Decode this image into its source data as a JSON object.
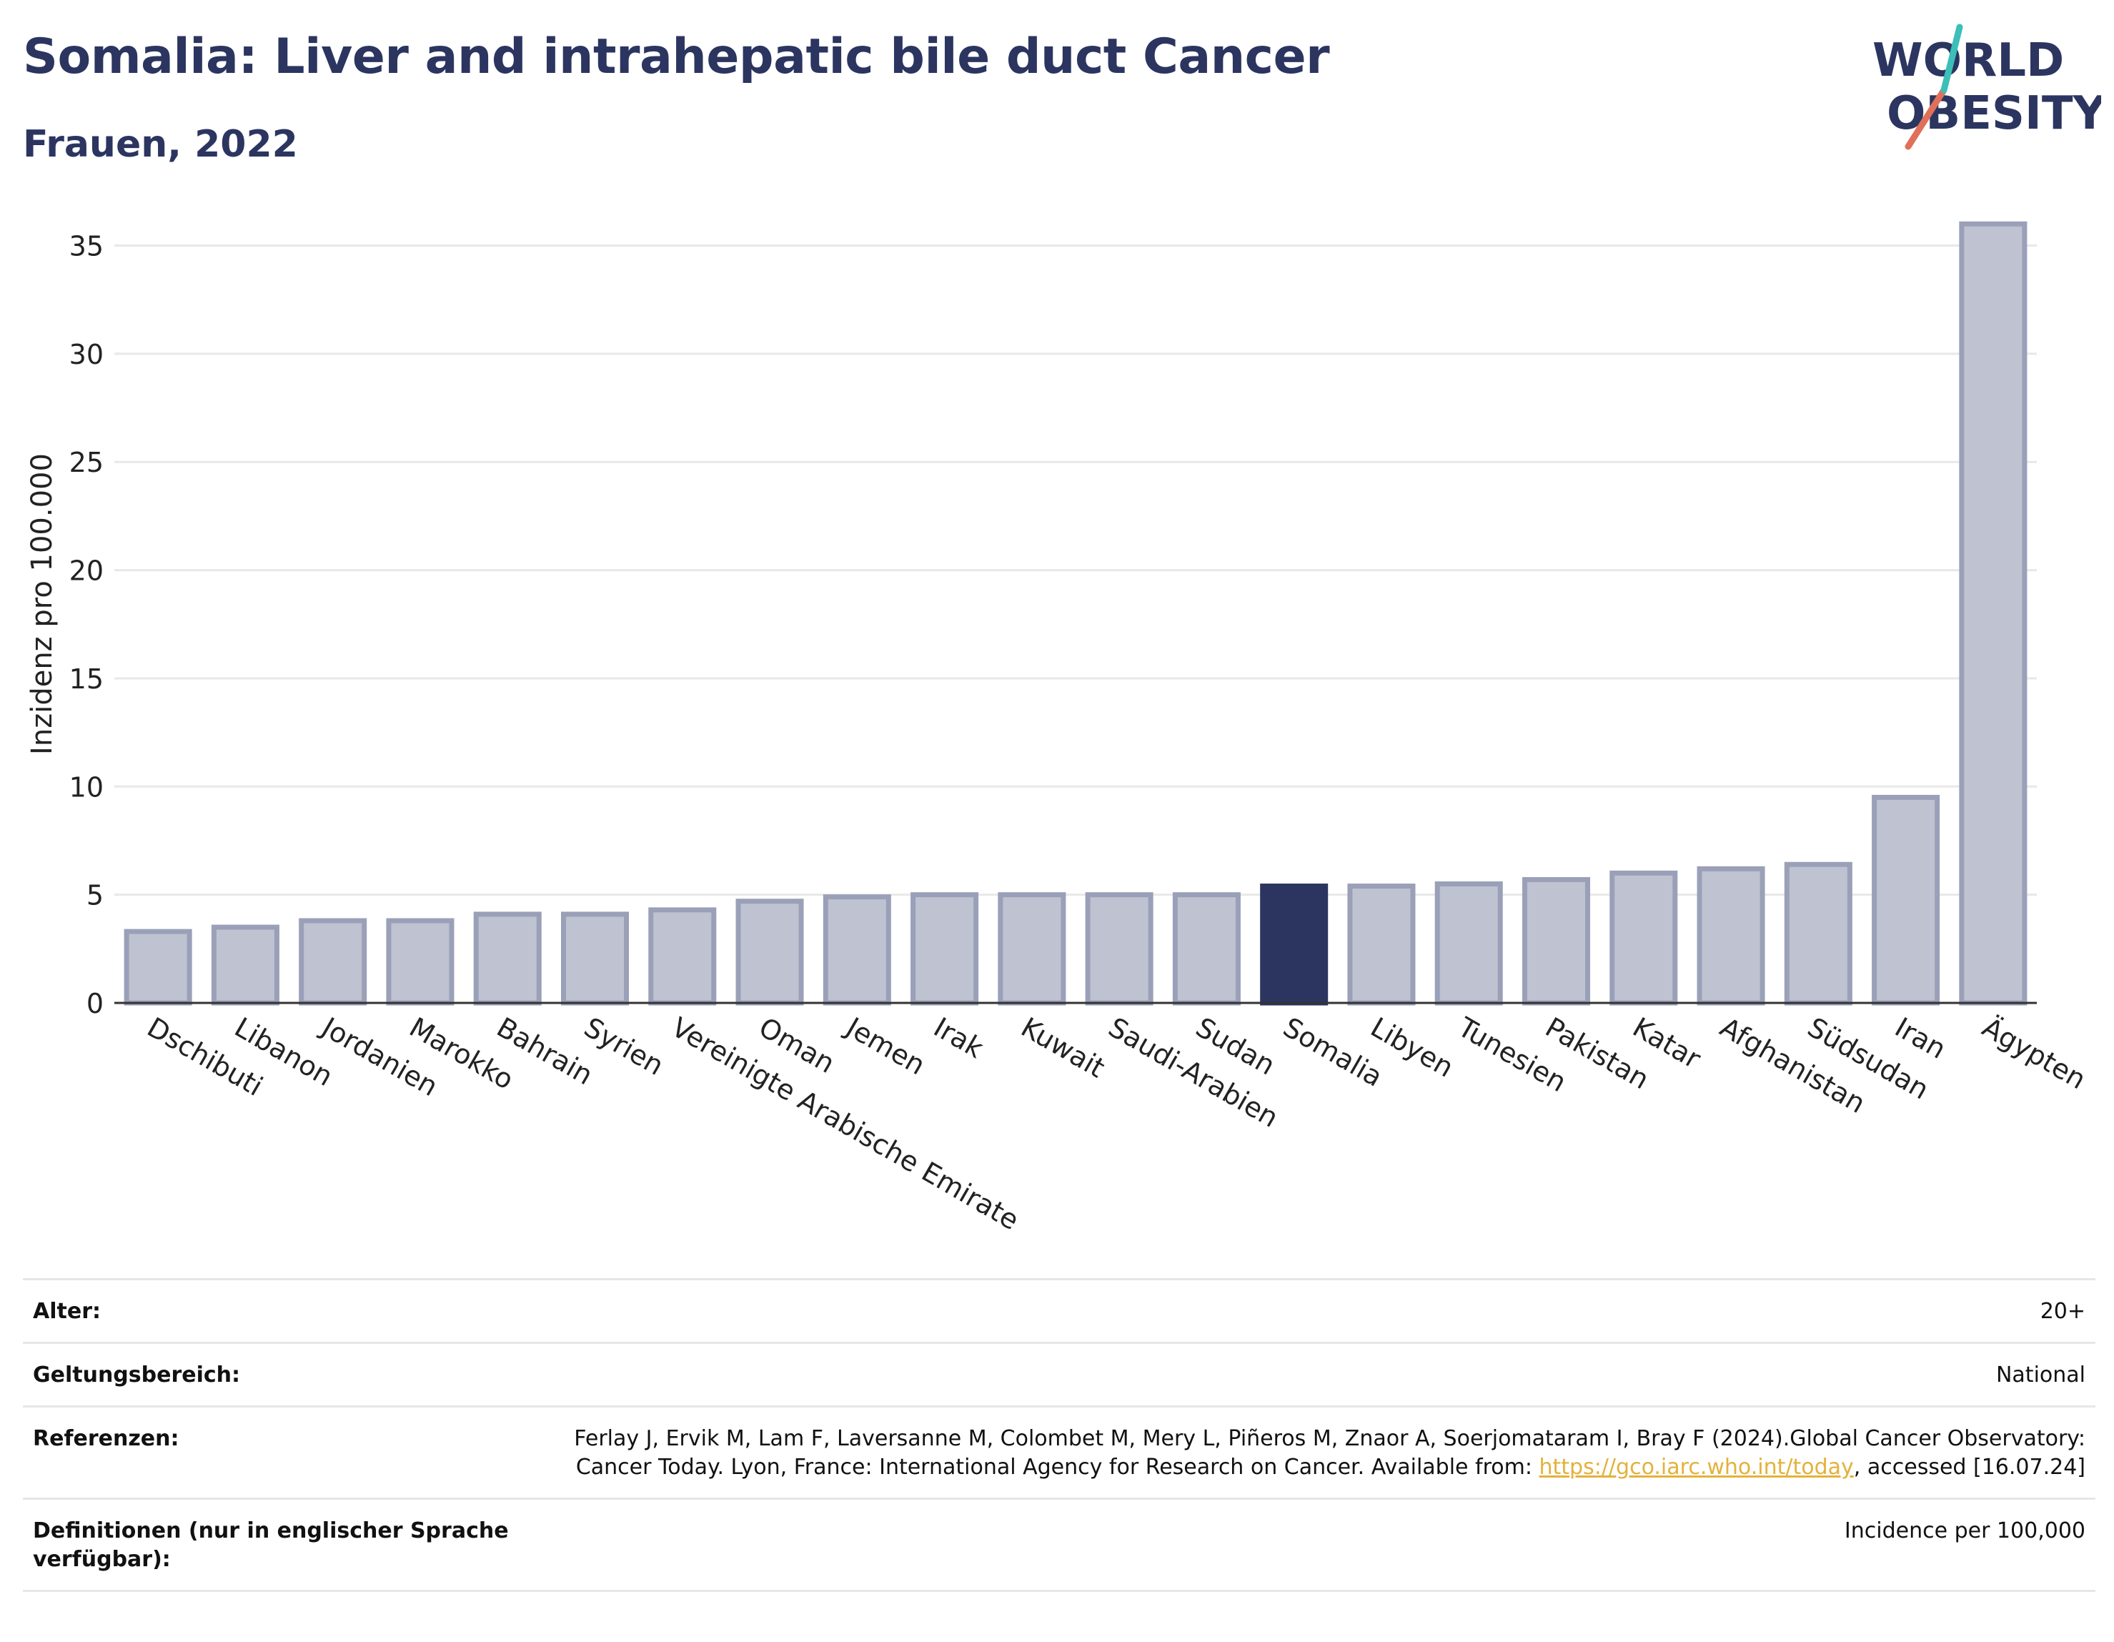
{
  "header": {
    "title": "Somalia: Liver and intrahepatic bile duct Cancer",
    "subtitle": "Frauen, 2022"
  },
  "logo": {
    "line1": "WORLD",
    "line2": "OBESITY"
  },
  "colors": {
    "bar": "#bfc2d0",
    "bar_stroke": "#9aa0b8",
    "highlight": "#2b3560",
    "title": "#2b3560",
    "link": "#e3b23c"
  },
  "chart_data": {
    "type": "bar",
    "ylabel": "Inzidenz pro 100.000",
    "xlabel": "",
    "ylim": [
      0,
      37
    ],
    "yticks": [
      0,
      5,
      10,
      15,
      20,
      25,
      30,
      35
    ],
    "grid": true,
    "highlight": "Somalia",
    "categories": [
      "Dschibuti",
      "Libanon",
      "Jordanien",
      "Marokko",
      "Bahrain",
      "Syrien",
      "Vereinigte Arabische Emirate",
      "Oman",
      "Jemen",
      "Irak",
      "Kuwait",
      "Saudi-Arabien",
      "Sudan",
      "Somalia",
      "Libyen",
      "Tunesien",
      "Pakistan",
      "Katar",
      "Afghanistan",
      "Südsudan",
      "Iran",
      "Ägypten"
    ],
    "values": [
      3.3,
      3.5,
      3.8,
      3.8,
      4.1,
      4.1,
      4.3,
      4.7,
      4.9,
      5.0,
      5.0,
      5.0,
      5.0,
      5.4,
      5.4,
      5.5,
      5.7,
      6.0,
      6.2,
      6.4,
      9.5,
      36.0
    ]
  },
  "meta": {
    "alter_label": "Alter:",
    "alter_value": "20+",
    "scope_label": "Geltungsbereich:",
    "scope_value": "National",
    "ref_label": "Referenzen:",
    "ref_text1": "Ferlay J, Ervik M, Lam F, Laversanne M, Colombet M, Mery L, Piñeros M, Znaor A, Soerjomataram I, Bray F (2024).Global Cancer Observatory: Cancer Today. Lyon, France: International Agency for Research on Cancer. Available from: ",
    "ref_link": "https://gco.iarc.who.int/today",
    "ref_text2": ", accessed [16.07.24]",
    "def_label": "Definitionen (nur in englischer Sprache verfügbar):",
    "def_value": "Incidence per 100,000"
  }
}
